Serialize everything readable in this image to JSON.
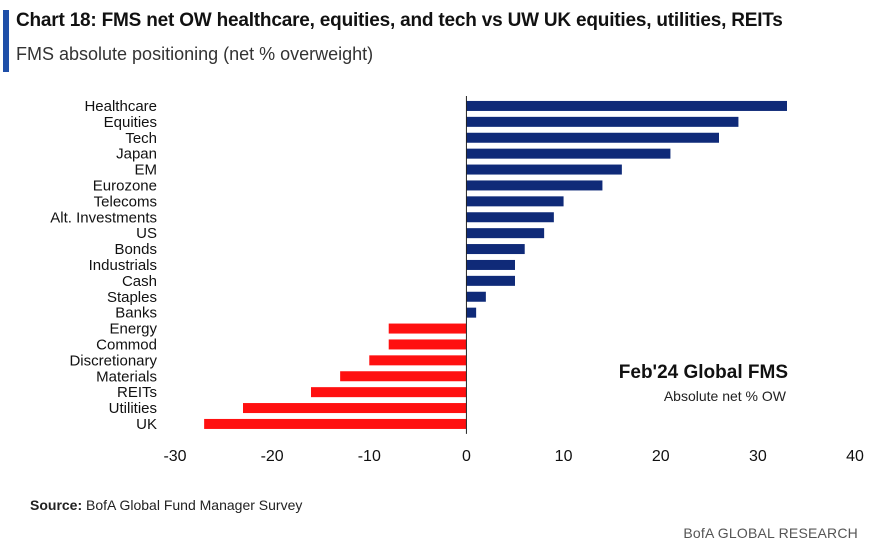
{
  "title": "Chart 18: FMS net OW healthcare, equities, and tech vs UW UK equities, utilities, REITs",
  "subtitle": "FMS absolute positioning (net % overweight)",
  "annotation": {
    "main": "Feb'24 Global FMS",
    "sub": "Absolute net % OW"
  },
  "source": {
    "label": "Source:",
    "text": "BofA Global Fund Manager Survey"
  },
  "brand": "BofA GLOBAL RESEARCH",
  "colors": {
    "positive": "#0f2a78",
    "negative": "#ff1010",
    "accent": "#1f4fa8",
    "axis": "#222222"
  },
  "chart_data": {
    "type": "bar",
    "orientation": "horizontal",
    "categories": [
      "Healthcare",
      "Equities",
      "Tech",
      "Japan",
      "EM",
      "Eurozone",
      "Telecoms",
      "Alt. Investments",
      "US",
      "Bonds",
      "Industrials",
      "Cash",
      "Staples",
      "Banks",
      "Energy",
      "Commod",
      "Discretionary",
      "Materials",
      "REITs",
      "Utilities",
      "UK"
    ],
    "values": [
      33,
      28,
      26,
      21,
      16,
      14,
      10,
      9,
      8,
      6,
      5,
      5,
      2,
      1,
      -8,
      -8,
      -10,
      -13,
      -16,
      -23,
      -27
    ],
    "xlim": [
      -30,
      40
    ],
    "xticks": [
      "-30",
      "-20",
      "-10",
      "0",
      "10",
      "20",
      "30",
      "40"
    ],
    "xlabel": "",
    "ylabel": "",
    "grid": false
  }
}
